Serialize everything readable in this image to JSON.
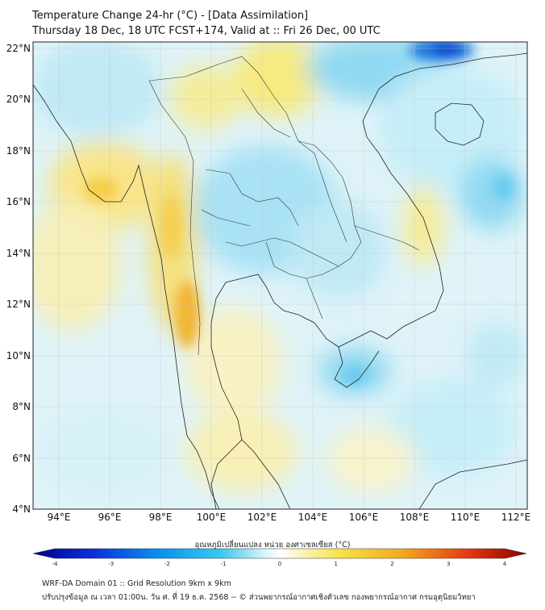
{
  "header": {
    "title": "Temperature Change 24-hr (°C) - [Data Assimilation]",
    "subtitle": "Thursday 18 Dec, 18 UTC FCST+174, Valid at :: Fri 26 Dec, 00 UTC"
  },
  "map": {
    "lat_labels": [
      "22°N",
      "20°N",
      "18°N",
      "16°N",
      "14°N",
      "12°N",
      "10°N",
      "8°N",
      "6°N",
      "4°N"
    ],
    "lon_labels": [
      "94°E",
      "96°E",
      "98°E",
      "100°E",
      "102°E",
      "104°E",
      "106°E",
      "108°E",
      "110°E",
      "112°E"
    ],
    "lat_range": [
      4,
      22.3
    ],
    "lon_range": [
      93,
      112.5
    ]
  },
  "colorbar": {
    "title": "อุณหภูมิเปลี่ยนแปลง หน่วย องศาเซลเซียส (°C)",
    "range": [
      -4,
      4
    ],
    "tick_labels": [
      "-4",
      "-3",
      "-2",
      "-1",
      "0",
      "1",
      "2",
      "3",
      "4"
    ]
  },
  "footer": {
    "line1": "WRF-DA Domain 01 :: Grid Resolution 9km x 9km",
    "line2": "ปรับปรุงข้อมูล ณ เวลา 01:00น. วัน ศ. ที่ 19 ธ.ค. 2568 -- © ส่วนพยากรณ์อากาศเชิงตัวเลข กองพยากรณ์อากาศ กรมอุตุนิยมวิทยา"
  },
  "colors": {
    "cold_extreme": "#00008b",
    "cold": "#0070e0",
    "cool": "#33c6f0",
    "neutral": "#ffffff",
    "warm": "#f5e84a",
    "hot": "#f0a020",
    "hot_extreme": "#8b0000"
  }
}
